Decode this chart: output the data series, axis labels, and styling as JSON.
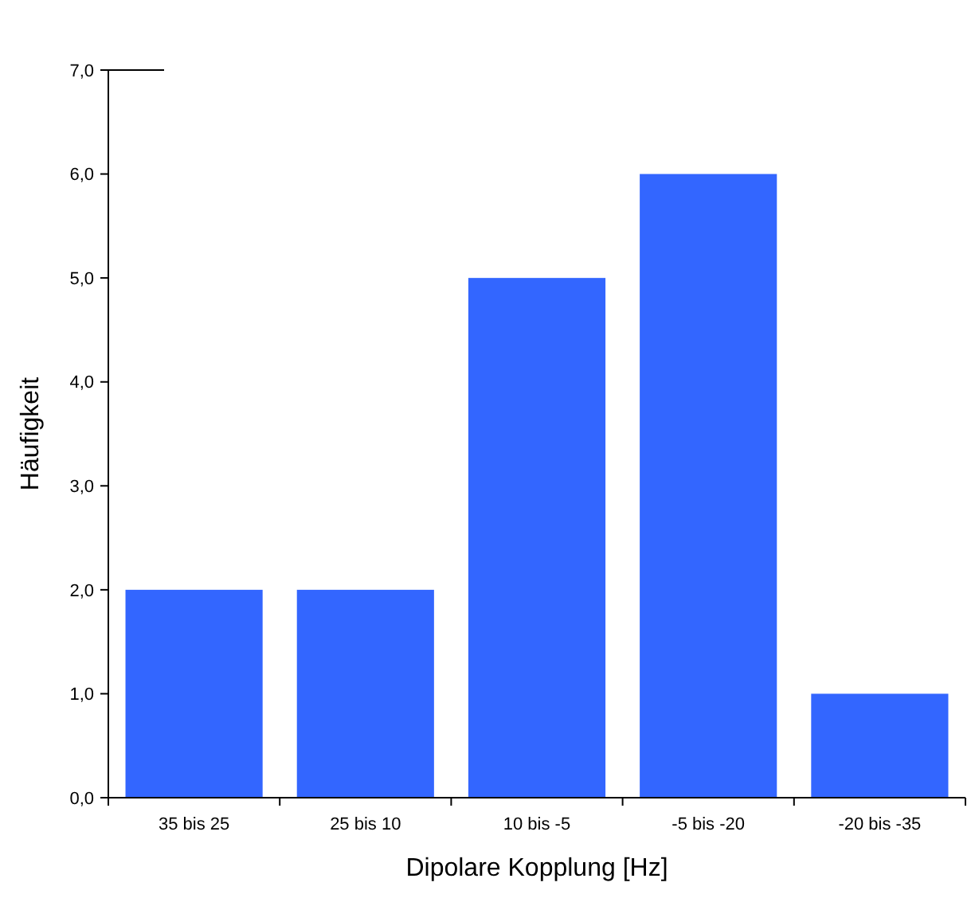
{
  "chart_data": {
    "type": "bar",
    "xlabel": "Dipolare Kopplung [Hz]",
    "ylabel": "Häufigkeit",
    "categories": [
      "35 bis 25",
      "25 bis 10",
      "10 bis -5",
      "-5 bis -20",
      "-20 bis -35"
    ],
    "values": [
      2,
      2,
      5,
      6,
      1
    ],
    "color": "#3366ff",
    "ylim": [
      0,
      7
    ],
    "yticks": [
      {
        "value": 0,
        "label": "0,0"
      },
      {
        "value": 1,
        "label": "1,0"
      },
      {
        "value": 2,
        "label": "2,0"
      },
      {
        "value": 3,
        "label": "3,0"
      },
      {
        "value": 4,
        "label": "4,0"
      },
      {
        "value": 5,
        "label": "5,0"
      },
      {
        "value": 6,
        "label": "6,0"
      },
      {
        "value": 7,
        "label": "7,0"
      }
    ],
    "grid": false
  }
}
